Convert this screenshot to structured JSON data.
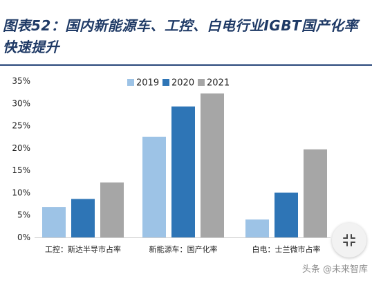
{
  "page": {
    "title": "图表52：国内新能源车、工控、白电行业IGBT国产化率快速提升",
    "watermark": "头条 @未来智库"
  },
  "colors": {
    "2019": "#9dc3e6",
    "2020": "#2e75b6",
    "2021": "#a6a6a6",
    "title": "#1f3a66"
  },
  "icons": {
    "expand": "collapse-arrows-icon"
  },
  "chart_data": {
    "type": "bar",
    "categories": [
      "工控：斯达半导市占率",
      "新能源车：国产化率",
      "白电：士兰微市占率"
    ],
    "series": [
      {
        "name": "2019",
        "values": [
          6.8,
          22.5,
          4.0
        ]
      },
      {
        "name": "2020",
        "values": [
          8.6,
          29.3,
          10.0
        ]
      },
      {
        "name": "2021",
        "values": [
          12.3,
          32.2,
          19.7
        ]
      }
    ],
    "ylim": [
      0,
      35
    ],
    "yticks": [
      "0%",
      "5%",
      "10%",
      "15%",
      "20%",
      "25%",
      "30%",
      "35%"
    ],
    "ytick_values": [
      0,
      5,
      10,
      15,
      20,
      25,
      30,
      35
    ],
    "legend": [
      "2019",
      "2020",
      "2021"
    ],
    "legend_position": "top-right",
    "grid": false
  }
}
